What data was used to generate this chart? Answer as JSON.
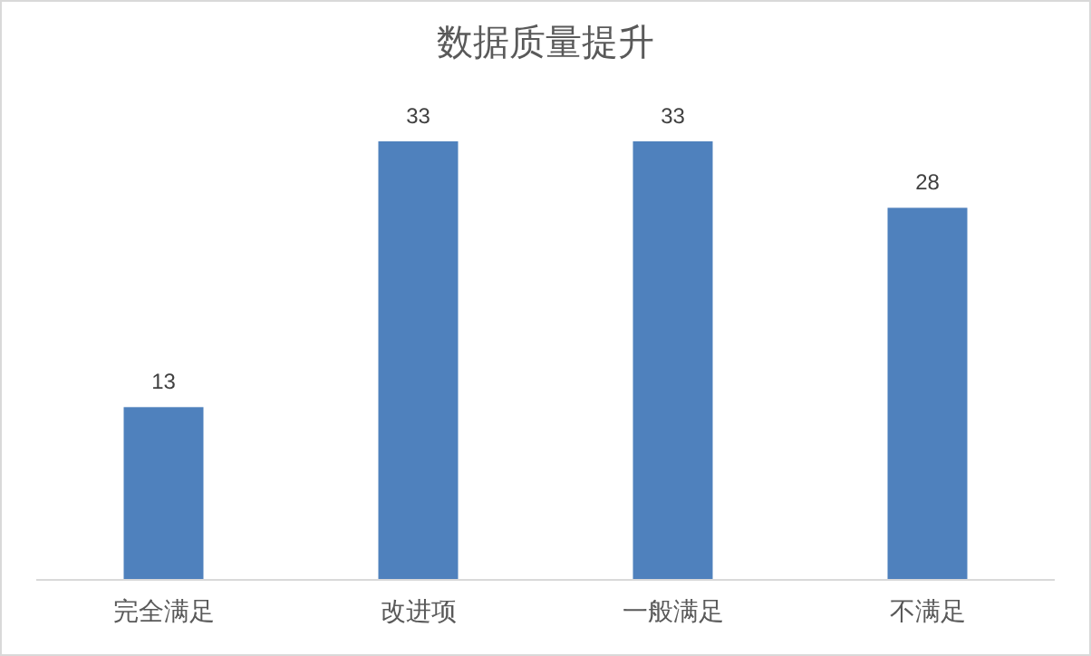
{
  "chart_data": {
    "type": "bar",
    "title": "数据质量提升",
    "relative": false,
    "categories": [
      "完全满足",
      "改进项",
      "一般满足",
      "不满足"
    ],
    "values": [
      13,
      33,
      33,
      28
    ],
    "color": "#4f81bd",
    "data_labels": true,
    "grid": false
  }
}
